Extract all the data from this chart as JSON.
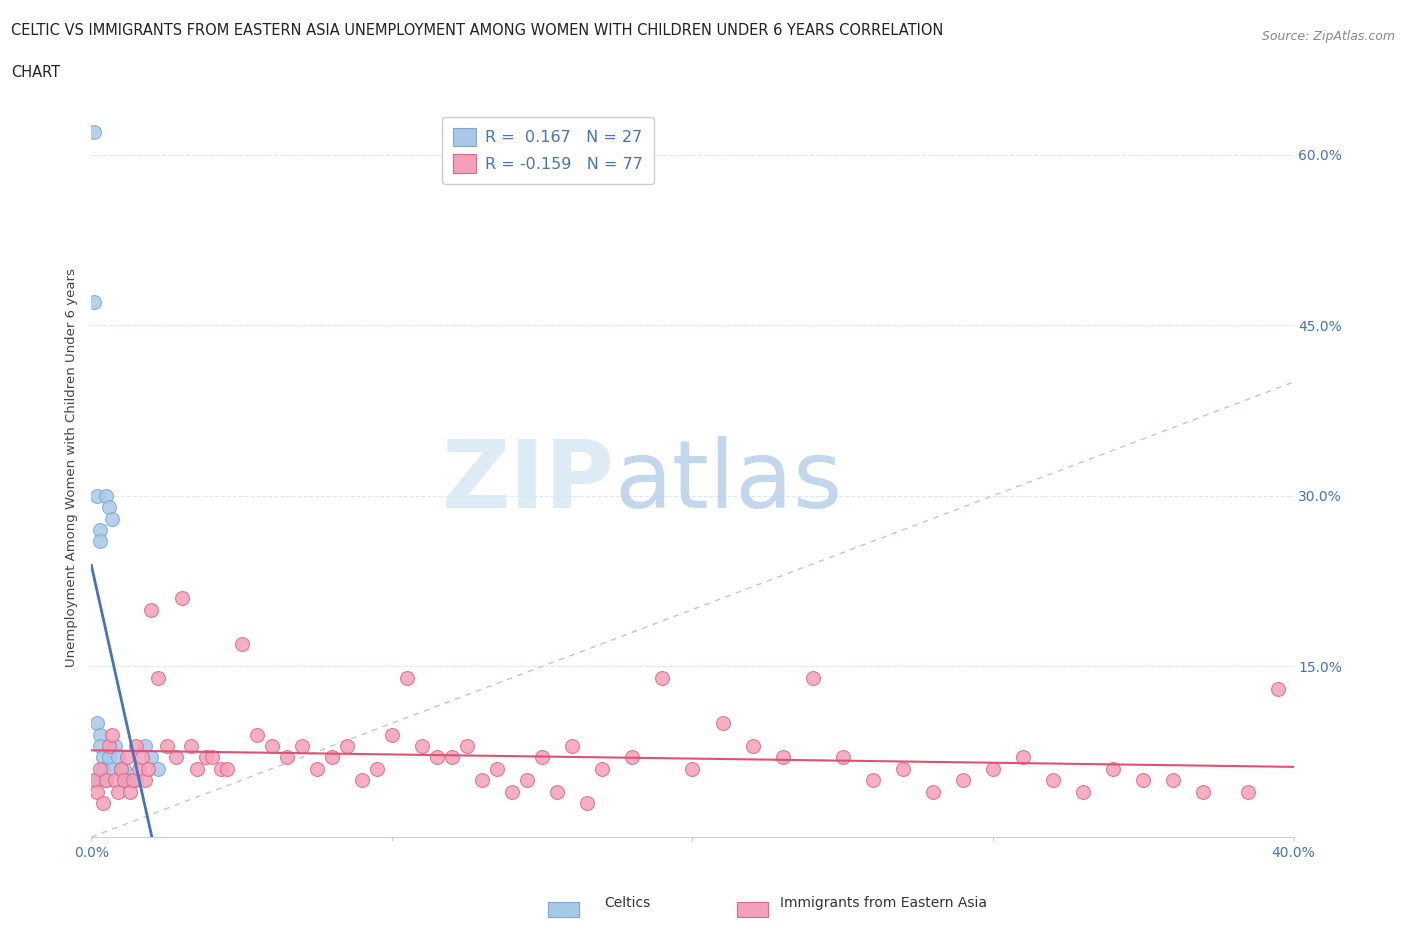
{
  "title_line1": "CELTIC VS IMMIGRANTS FROM EASTERN ASIA UNEMPLOYMENT AMONG WOMEN WITH CHILDREN UNDER 6 YEARS CORRELATION",
  "title_line2": "CHART",
  "source": "Source: ZipAtlas.com",
  "ylabel": "Unemployment Among Women with Children Under 6 years",
  "xlim": [
    0.0,
    0.4
  ],
  "ylim": [
    0.0,
    0.65
  ],
  "yticks": [
    0.0,
    0.15,
    0.3,
    0.45,
    0.6
  ],
  "xticks": [
    0.0,
    0.1,
    0.2,
    0.3,
    0.4
  ],
  "celtics_color": "#a8c8e8",
  "celtics_edge": "#7aaad4",
  "immigrants_color": "#f4a0b8",
  "immigrants_edge": "#e06888",
  "trend_celtics_color": "#4472c4",
  "trend_immigrants_color": "#e05070",
  "diagonal_color": "#b8c8d8",
  "tick_color": "#4472c4",
  "R_celtics": 0.167,
  "N_celtics": 27,
  "R_immigrants": -0.159,
  "N_immigrants": 77,
  "celtics_x": [
    0.001,
    0.001,
    0.002,
    0.002,
    0.002,
    0.003,
    0.003,
    0.003,
    0.003,
    0.004,
    0.004,
    0.005,
    0.005,
    0.006,
    0.006,
    0.007,
    0.007,
    0.008,
    0.009,
    0.01,
    0.011,
    0.012,
    0.013,
    0.015,
    0.018,
    0.02,
    0.022
  ],
  "celtics_y": [
    0.62,
    0.47,
    0.3,
    0.1,
    0.05,
    0.27,
    0.26,
    0.09,
    0.08,
    0.07,
    0.06,
    0.3,
    0.05,
    0.29,
    0.07,
    0.28,
    0.06,
    0.08,
    0.07,
    0.06,
    0.06,
    0.05,
    0.05,
    0.05,
    0.08,
    0.07,
    0.06
  ],
  "immigrants_x": [
    0.001,
    0.002,
    0.003,
    0.004,
    0.005,
    0.006,
    0.007,
    0.008,
    0.009,
    0.01,
    0.011,
    0.012,
    0.013,
    0.014,
    0.015,
    0.016,
    0.017,
    0.018,
    0.019,
    0.02,
    0.022,
    0.025,
    0.028,
    0.03,
    0.033,
    0.035,
    0.038,
    0.04,
    0.043,
    0.045,
    0.05,
    0.055,
    0.06,
    0.065,
    0.07,
    0.075,
    0.08,
    0.085,
    0.09,
    0.095,
    0.1,
    0.105,
    0.11,
    0.115,
    0.12,
    0.125,
    0.13,
    0.135,
    0.14,
    0.145,
    0.15,
    0.155,
    0.16,
    0.165,
    0.17,
    0.18,
    0.19,
    0.2,
    0.21,
    0.22,
    0.23,
    0.24,
    0.25,
    0.26,
    0.27,
    0.28,
    0.29,
    0.3,
    0.31,
    0.32,
    0.33,
    0.34,
    0.35,
    0.36,
    0.37,
    0.385,
    0.395
  ],
  "immigrants_y": [
    0.05,
    0.04,
    0.06,
    0.03,
    0.05,
    0.08,
    0.09,
    0.05,
    0.04,
    0.06,
    0.05,
    0.07,
    0.04,
    0.05,
    0.08,
    0.06,
    0.07,
    0.05,
    0.06,
    0.2,
    0.14,
    0.08,
    0.07,
    0.21,
    0.08,
    0.06,
    0.07,
    0.07,
    0.06,
    0.06,
    0.17,
    0.09,
    0.08,
    0.07,
    0.08,
    0.06,
    0.07,
    0.08,
    0.05,
    0.06,
    0.09,
    0.14,
    0.08,
    0.07,
    0.07,
    0.08,
    0.05,
    0.06,
    0.04,
    0.05,
    0.07,
    0.04,
    0.08,
    0.03,
    0.06,
    0.07,
    0.14,
    0.06,
    0.1,
    0.08,
    0.07,
    0.14,
    0.07,
    0.05,
    0.06,
    0.04,
    0.05,
    0.06,
    0.07,
    0.05,
    0.04,
    0.06,
    0.05,
    0.05,
    0.04,
    0.04,
    0.13
  ],
  "background_color": "#ffffff",
  "grid_color": "#dce8f0"
}
